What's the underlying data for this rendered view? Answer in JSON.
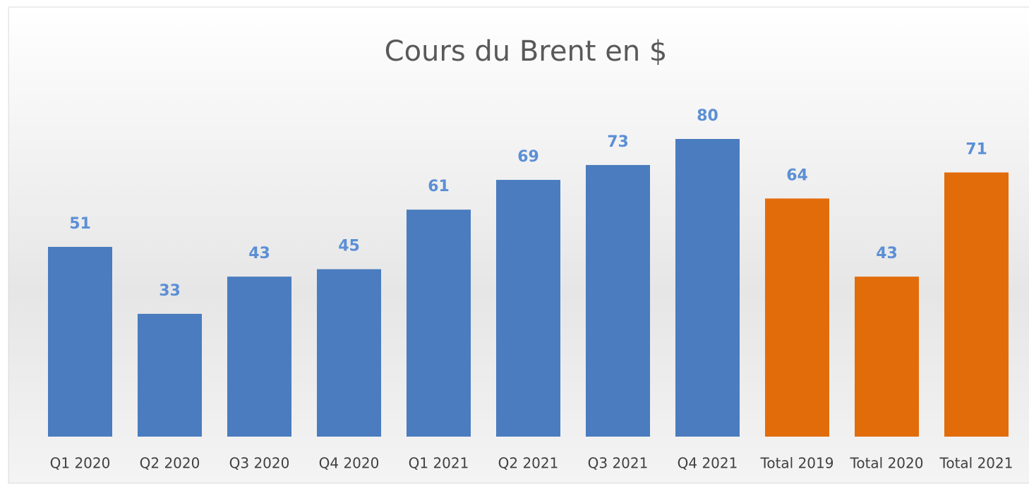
{
  "chart_data": {
    "type": "bar",
    "title": "Cours du Brent en $",
    "categories": [
      "Q1 2020",
      "Q2 2020",
      "Q3 2020",
      "Q4 2020",
      "Q1 2021",
      "Q2 2021",
      "Q3 2021",
      "Q4 2021",
      "Total 2019",
      "Total 2020",
      "Total 2021"
    ],
    "values": [
      51,
      33,
      43,
      45,
      61,
      69,
      73,
      80,
      64,
      43,
      71
    ],
    "colors": [
      "#4a7cbf",
      "#4a7cbf",
      "#4a7cbf",
      "#4a7cbf",
      "#4a7cbf",
      "#4a7cbf",
      "#4a7cbf",
      "#4a7cbf",
      "#e36c0a",
      "#e36c0a",
      "#e36c0a"
    ],
    "label_color": "#5b8fd6"
  }
}
